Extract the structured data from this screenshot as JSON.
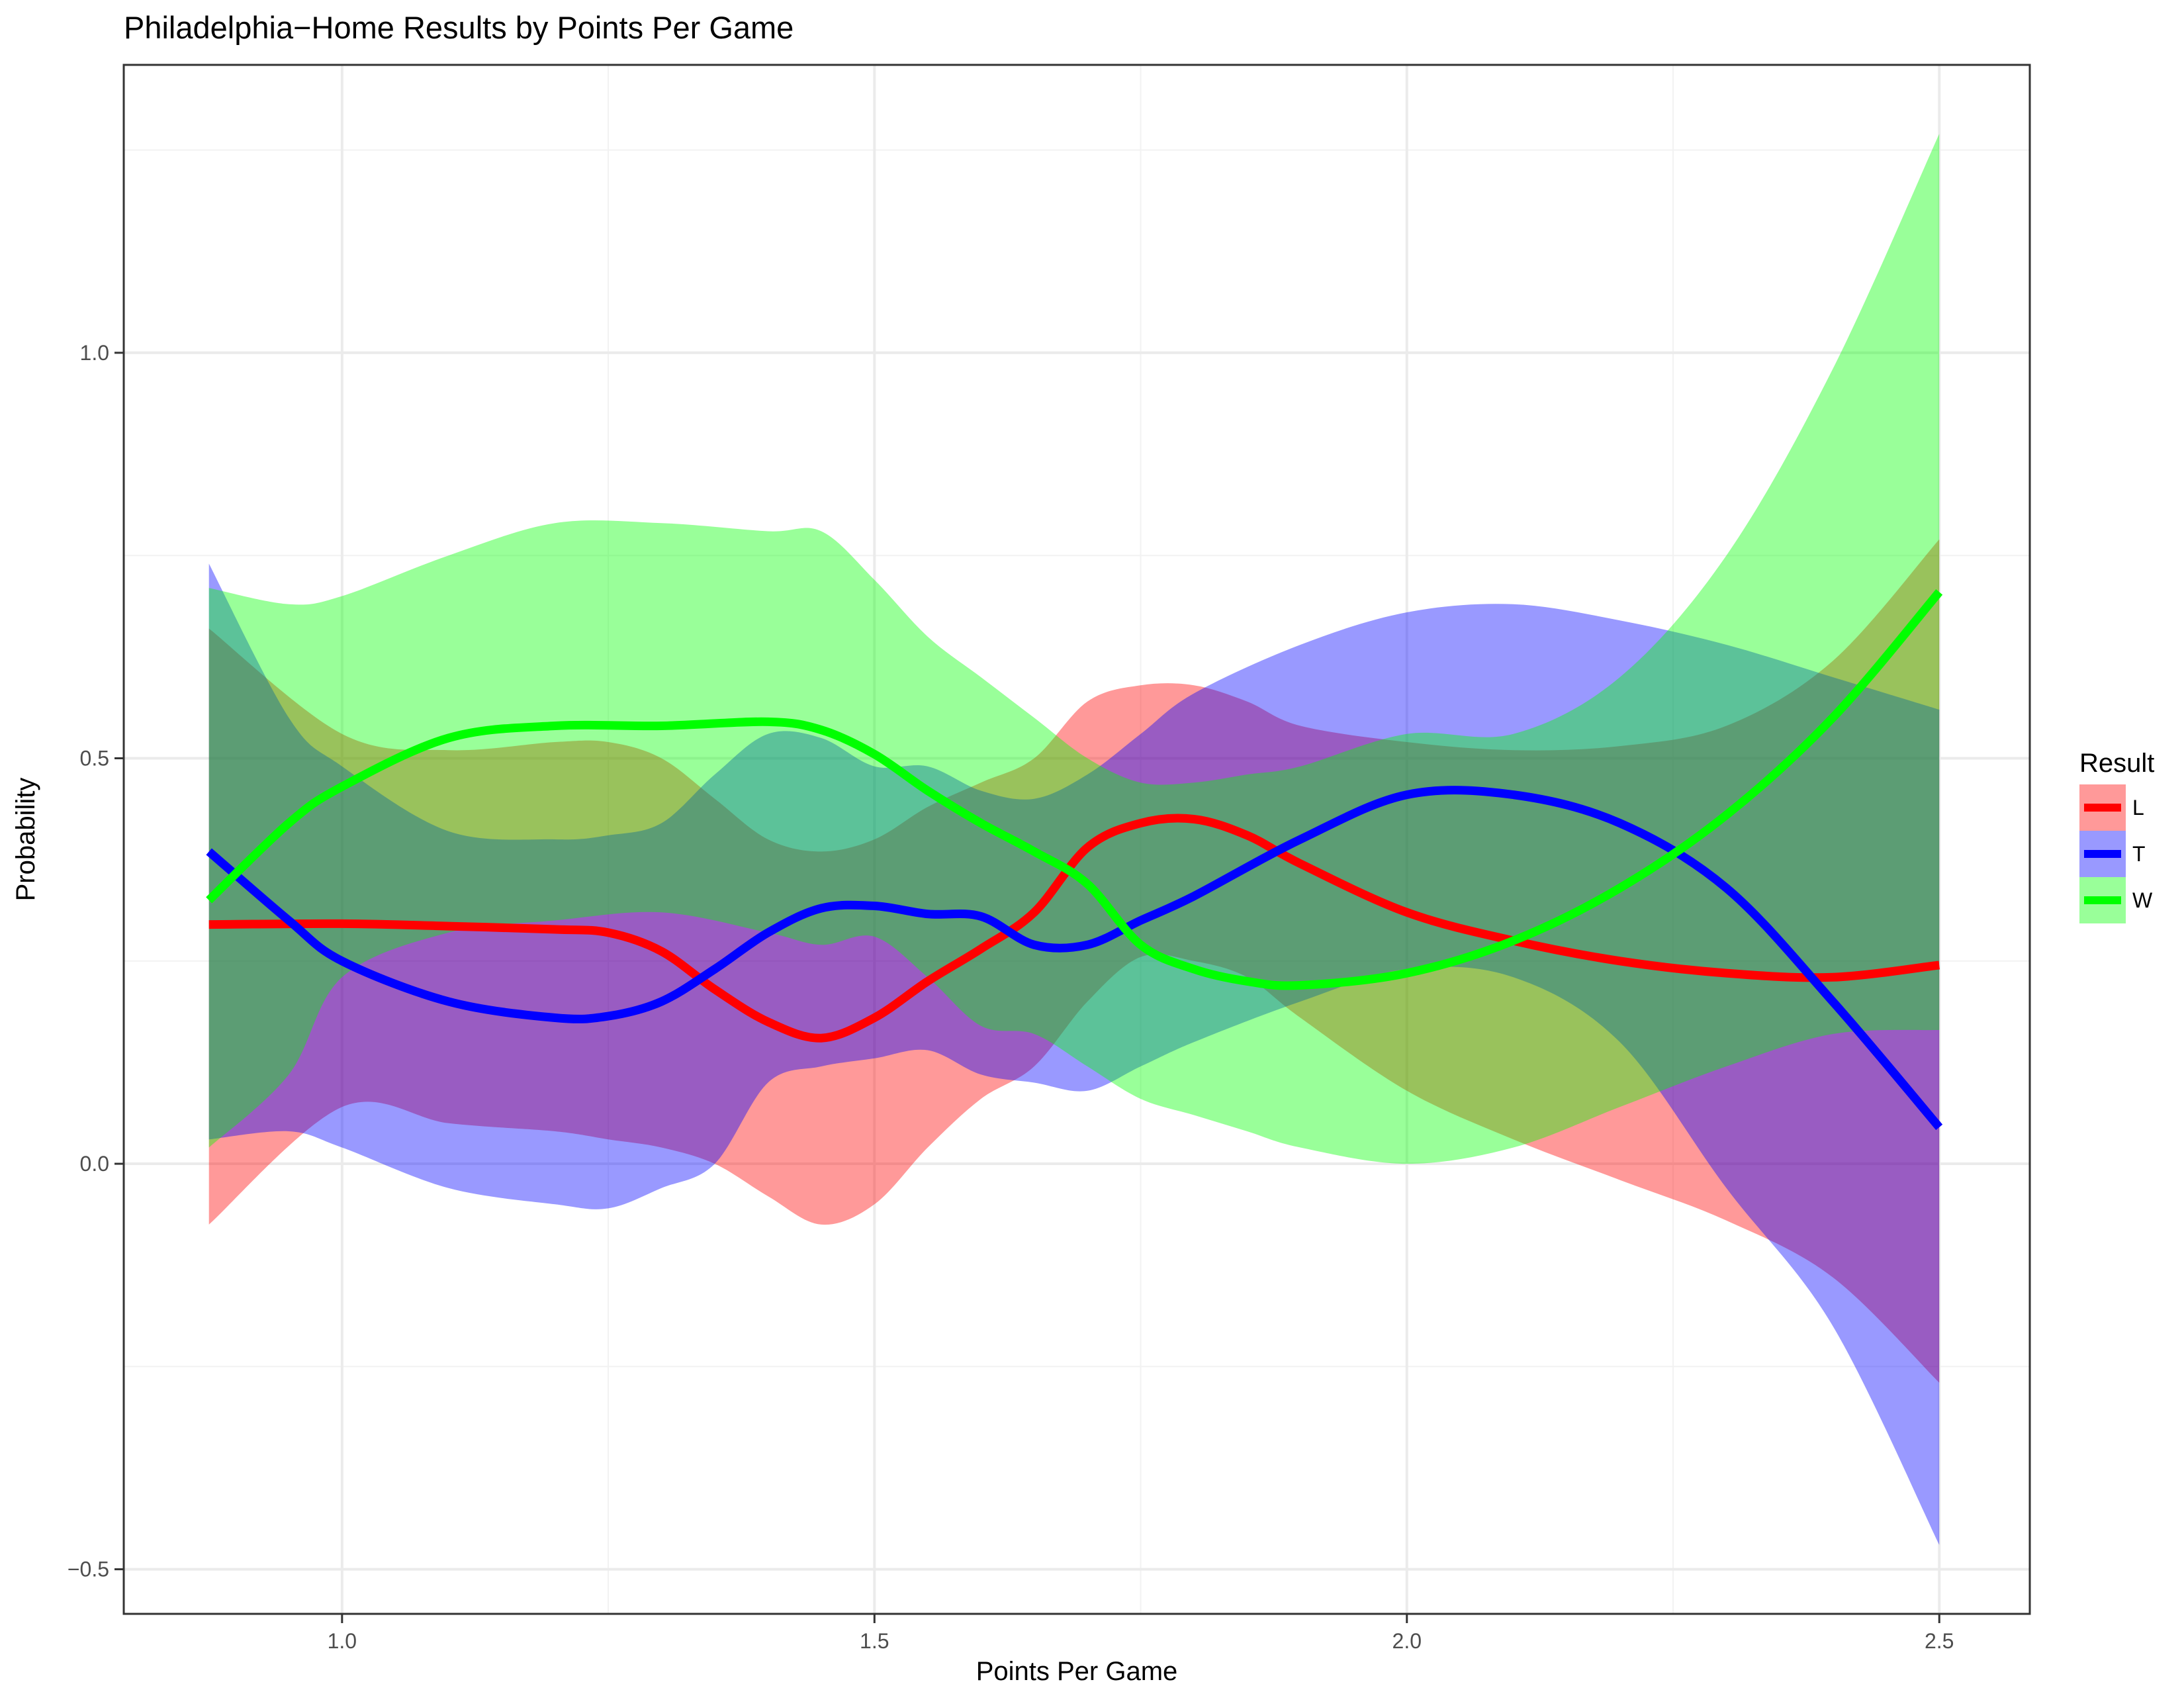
{
  "chart_data": {
    "type": "line",
    "title": "Philadelphia−Home Results by Points Per Game",
    "xlabel": "Points Per Game",
    "ylabel": "Probability",
    "xlim": [
      0.795,
      2.585
    ],
    "ylim": [
      -0.555,
      1.355
    ],
    "x_ticks": [
      1.0,
      1.5,
      2.0,
      2.5
    ],
    "x_tick_labels": [
      "1.0",
      "1.5",
      "2.0",
      "2.5"
    ],
    "y_ticks": [
      -0.5,
      0.0,
      0.5,
      1.0
    ],
    "y_tick_labels": [
      "−0.5",
      "0.0",
      "0.5",
      "1.0"
    ],
    "grid": true,
    "legend": {
      "title": "Result",
      "position": "right"
    },
    "series": [
      {
        "name": "L",
        "color": "#ff0000",
        "x": [
          0.875,
          1.0,
          1.1,
          1.2,
          1.25,
          1.3,
          1.35,
          1.4,
          1.45,
          1.5,
          1.55,
          1.6,
          1.65,
          1.7,
          1.75,
          1.8,
          1.85,
          1.9,
          2.0,
          2.1,
          2.2,
          2.3,
          2.4,
          2.5
        ],
        "y": [
          0.295,
          0.296,
          0.293,
          0.289,
          0.285,
          0.262,
          0.215,
          0.175,
          0.155,
          0.18,
          0.225,
          0.265,
          0.31,
          0.39,
          0.42,
          0.425,
          0.405,
          0.37,
          0.31,
          0.275,
          0.25,
          0.235,
          0.23,
          0.245
        ],
        "lower": [
          -0.075,
          0.07,
          0.05,
          0.04,
          0.03,
          0.02,
          0.0,
          -0.04,
          -0.075,
          -0.05,
          0.02,
          0.08,
          0.12,
          0.2,
          0.255,
          0.25,
          0.23,
          0.18,
          0.09,
          0.03,
          -0.02,
          -0.07,
          -0.14,
          -0.27
        ],
        "upper": [
          0.66,
          0.53,
          0.51,
          0.52,
          0.52,
          0.5,
          0.45,
          0.4,
          0.385,
          0.4,
          0.44,
          0.47,
          0.5,
          0.57,
          0.59,
          0.59,
          0.57,
          0.54,
          0.52,
          0.51,
          0.515,
          0.54,
          0.62,
          0.77
        ]
      },
      {
        "name": "T",
        "color": "#0000ff",
        "x": [
          0.875,
          0.95,
          1.0,
          1.1,
          1.2,
          1.25,
          1.3,
          1.35,
          1.4,
          1.45,
          1.5,
          1.55,
          1.6,
          1.65,
          1.7,
          1.75,
          1.8,
          1.9,
          2.0,
          2.1,
          2.2,
          2.3,
          2.4,
          2.5
        ],
        "y": [
          0.385,
          0.3,
          0.25,
          0.2,
          0.18,
          0.182,
          0.2,
          0.24,
          0.285,
          0.315,
          0.318,
          0.308,
          0.305,
          0.27,
          0.27,
          0.3,
          0.33,
          0.4,
          0.455,
          0.455,
          0.42,
          0.34,
          0.2,
          0.045
        ],
        "lower": [
          0.03,
          0.04,
          0.02,
          -0.03,
          -0.05,
          -0.055,
          -0.03,
          0.0,
          0.1,
          0.12,
          0.13,
          0.14,
          0.11,
          0.1,
          0.09,
          0.12,
          0.15,
          0.2,
          0.24,
          0.23,
          0.15,
          -0.03,
          -0.2,
          -0.47
        ],
        "upper": [
          0.74,
          0.55,
          0.49,
          0.41,
          0.4,
          0.405,
          0.42,
          0.48,
          0.53,
          0.525,
          0.49,
          0.49,
          0.46,
          0.45,
          0.48,
          0.53,
          0.58,
          0.64,
          0.68,
          0.69,
          0.67,
          0.64,
          0.6,
          0.56
        ]
      },
      {
        "name": "W",
        "color": "#00ff00",
        "x": [
          0.875,
          0.95,
          1.0,
          1.1,
          1.2,
          1.3,
          1.4,
          1.45,
          1.5,
          1.55,
          1.6,
          1.65,
          1.7,
          1.75,
          1.8,
          1.85,
          1.9,
          2.0,
          2.1,
          2.2,
          2.3,
          2.4,
          2.5
        ],
        "y": [
          0.325,
          0.42,
          0.465,
          0.525,
          0.54,
          0.54,
          0.545,
          0.535,
          0.505,
          0.46,
          0.42,
          0.385,
          0.345,
          0.27,
          0.24,
          0.225,
          0.22,
          0.235,
          0.275,
          0.34,
          0.43,
          0.55,
          0.705
        ],
        "lower": [
          0.02,
          0.11,
          0.23,
          0.285,
          0.3,
          0.31,
          0.285,
          0.27,
          0.28,
          0.23,
          0.17,
          0.16,
          0.12,
          0.08,
          0.06,
          0.04,
          0.02,
          0.0,
          0.02,
          0.07,
          0.12,
          0.16,
          0.165
        ],
        "upper": [
          0.71,
          0.69,
          0.7,
          0.75,
          0.79,
          0.79,
          0.78,
          0.78,
          0.72,
          0.65,
          0.6,
          0.55,
          0.5,
          0.47,
          0.47,
          0.48,
          0.49,
          0.53,
          0.53,
          0.6,
          0.75,
          0.98,
          1.27
        ]
      }
    ]
  }
}
